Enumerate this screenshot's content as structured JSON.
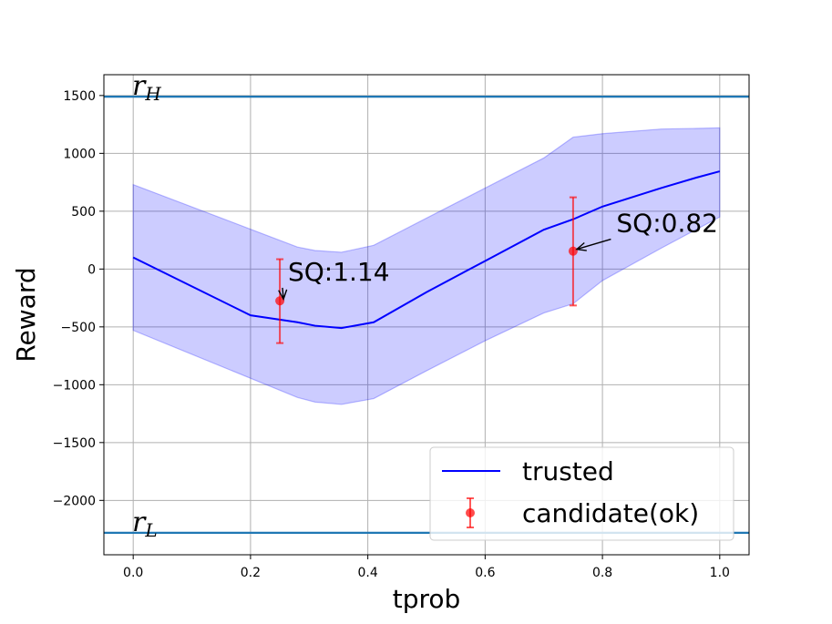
{
  "chart_data": {
    "type": "line",
    "xlabel": "tprob",
    "ylabel": "Reward",
    "xlim": [
      -0.05,
      1.05
    ],
    "ylim": [
      -2470,
      1680
    ],
    "grid": true,
    "legend_placement": "bottom-right",
    "x_ticks": [
      0.0,
      0.2,
      0.4,
      0.6,
      0.8,
      1.0
    ],
    "x_tick_labels": [
      "0.0",
      "0.2",
      "0.4",
      "0.6",
      "0.8",
      "1.0"
    ],
    "y_ticks": [
      -2000,
      -1500,
      -1000,
      -500,
      0,
      500,
      1000,
      1500
    ],
    "y_tick_labels": [
      "−2000",
      "−1500",
      "−1000",
      "−500",
      "0",
      "500",
      "1000",
      "1500"
    ],
    "trusted": {
      "name": "trusted",
      "color": "#0000ff",
      "x": [
        0.0,
        0.1,
        0.2,
        0.28,
        0.31,
        0.355,
        0.41,
        0.5,
        0.6,
        0.7,
        0.75,
        0.8,
        0.9,
        0.96,
        1.0
      ],
      "y": [
        100,
        -150,
        -400,
        -460,
        -490,
        -510,
        -460,
        -200,
        70,
        340,
        430,
        540,
        700,
        790,
        845
      ]
    },
    "band": {
      "color": "#9999ff",
      "upper_x": [
        0.0,
        0.28,
        0.31,
        0.355,
        0.41,
        0.5,
        0.6,
        0.7,
        0.75,
        0.8,
        0.9,
        1.0
      ],
      "upper_y": [
        730,
        190,
        160,
        145,
        205,
        440,
        700,
        960,
        1140,
        1170,
        1210,
        1220
      ],
      "lower_x": [
        0.0,
        0.28,
        0.31,
        0.355,
        0.41,
        0.5,
        0.6,
        0.7,
        0.75,
        0.8,
        0.9,
        1.0
      ],
      "lower_y": [
        -530,
        -1110,
        -1150,
        -1170,
        -1120,
        -880,
        -620,
        -380,
        -300,
        -100,
        180,
        450
      ]
    },
    "candidates": {
      "name": "candidate(ok)",
      "color": "#ff0000",
      "points": [
        {
          "x": 0.25,
          "y": -275,
          "err_low": -640,
          "err_high": 85,
          "label": "SQ:1.14",
          "label_x": 0.27,
          "label_y": -20
        },
        {
          "x": 0.75,
          "y": 155,
          "err_low": -315,
          "err_high": 620,
          "label": "SQ:0.82",
          "label_x": 0.83,
          "label_y": 400
        }
      ]
    },
    "hlines": [
      {
        "y": 1490,
        "label": "r",
        "sub": "H"
      },
      {
        "y": 2280,
        "label": "r",
        "sub": "L",
        "negative": true
      }
    ],
    "hline_color": "#1f77b4"
  }
}
